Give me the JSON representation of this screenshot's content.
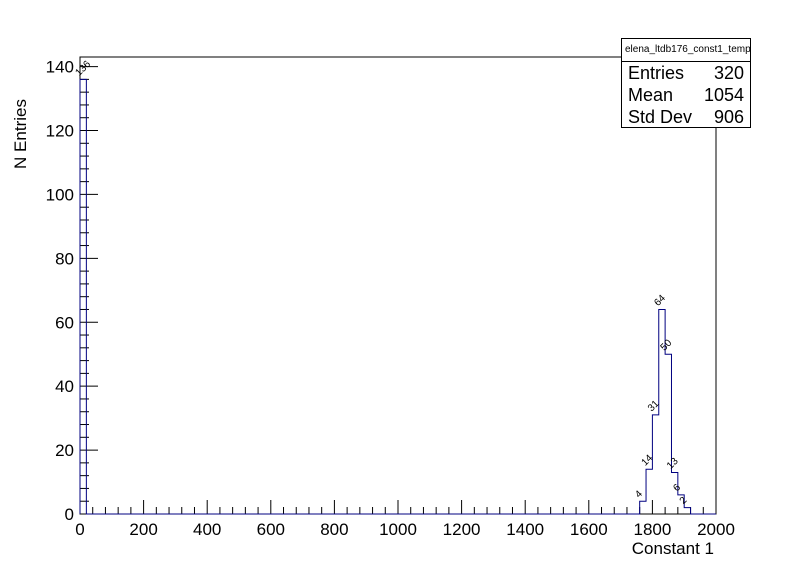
{
  "chart_data": {
    "type": "histogram",
    "xlabel": "Constant 1",
    "ylabel": "N Entries",
    "xlim": [
      0,
      2000
    ],
    "ylim": [
      0,
      143
    ],
    "bin_width": 20,
    "x_ticks": [
      0,
      200,
      400,
      600,
      800,
      1000,
      1200,
      1400,
      1600,
      1800,
      2000
    ],
    "y_ticks": [
      0,
      20,
      40,
      60,
      80,
      100,
      120,
      140
    ],
    "bins": [
      {
        "low": 0,
        "count": 136,
        "label": "136"
      },
      {
        "low": 1760,
        "count": 4,
        "label": "4"
      },
      {
        "low": 1780,
        "count": 14,
        "label": "14"
      },
      {
        "low": 1800,
        "count": 31,
        "label": "31"
      },
      {
        "low": 1820,
        "count": 64,
        "label": "64"
      },
      {
        "low": 1840,
        "count": 50,
        "label": "50"
      },
      {
        "low": 1860,
        "count": 13,
        "label": "13"
      },
      {
        "low": 1880,
        "count": 6,
        "label": "6"
      },
      {
        "low": 1900,
        "count": 2,
        "label": "2"
      }
    ],
    "line_color": "#000080",
    "grid": false
  },
  "stats_box": {
    "title": "elena_ltdb176_const1_temp",
    "rows": [
      {
        "label": "Entries",
        "value": "320"
      },
      {
        "label": "Mean",
        "value": "1054"
      },
      {
        "label": "Std Dev",
        "value": "906"
      }
    ]
  }
}
